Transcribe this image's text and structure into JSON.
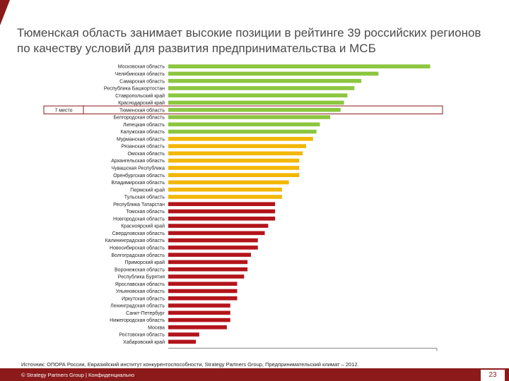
{
  "title": "Тюменская область занимает высокие позиции в рейтинге 39 российских регионов по качеству условий для развития предпринимательства и МСБ",
  "source": "Источник: ОПОРА России, Евразийский институт конкурентоспособности, Strategy Partners Group, Предпринимательский климат – 2012.",
  "footer": {
    "text": "© Strategy Partners Group | Конфиденциально",
    "page_number": "23"
  },
  "colors": {
    "green": "#8cc63f",
    "yellow": "#f2b705",
    "red": "#b3141b",
    "highlight_border": "#8c1a1a",
    "footer_bg": "#8c1a1a"
  },
  "chart_data": {
    "type": "bar",
    "orientation": "horizontal",
    "highlight": {
      "category": "Тюменская область",
      "label": "7 место"
    },
    "categories": [
      "Московская область",
      "Челябинская область",
      "Самарская область",
      "Республика Башкортостан",
      "Ставропольский край",
      "Краснодарский край",
      "Тюменская область",
      "Белгородская область",
      "Липецкая область",
      "Калужская область",
      "Мурманская область",
      "Рязанская область",
      "Омская область",
      "Архангельская область",
      "Чувашская Республика",
      "Оренбургская область",
      "Владимирская область",
      "Пермский край",
      "Тульская область",
      "Республика Татарстан",
      "Томская область",
      "Новгородская область",
      "Красноярский край",
      "Свердловская область",
      "Калининградская область",
      "Новосибирская область",
      "Волгоградская область",
      "Приморский край",
      "Воронежская область",
      "Республика Бурятия",
      "Ярославская область",
      "Ульяновская область",
      "Иркутская область",
      "Ленинградская область",
      "Санкт-Петербург",
      "Нижегородская область",
      "Москва",
      "Ростовская область",
      "Хабаровский край"
    ],
    "values": [
      76,
      61,
      56,
      54,
      52,
      51,
      50,
      47,
      44,
      43,
      42,
      40,
      39,
      38,
      38,
      38,
      35,
      33,
      33,
      31,
      31,
      31,
      29,
      28,
      26,
      26,
      24,
      23,
      23,
      22,
      20,
      20,
      20,
      18,
      18,
      18,
      17,
      9,
      8
    ],
    "bar_colors": [
      "green",
      "green",
      "green",
      "green",
      "green",
      "green",
      "green",
      "green",
      "green",
      "green",
      "yellow",
      "yellow",
      "yellow",
      "yellow",
      "yellow",
      "yellow",
      "yellow",
      "yellow",
      "yellow",
      "red",
      "red",
      "red",
      "red",
      "red",
      "red",
      "red",
      "red",
      "red",
      "red",
      "red",
      "red",
      "red",
      "red",
      "red",
      "red",
      "red",
      "red",
      "red",
      "red"
    ],
    "xlim": [
      0,
      80
    ],
    "grid": false,
    "legend": "none",
    "xlabel": "",
    "ylabel": ""
  }
}
